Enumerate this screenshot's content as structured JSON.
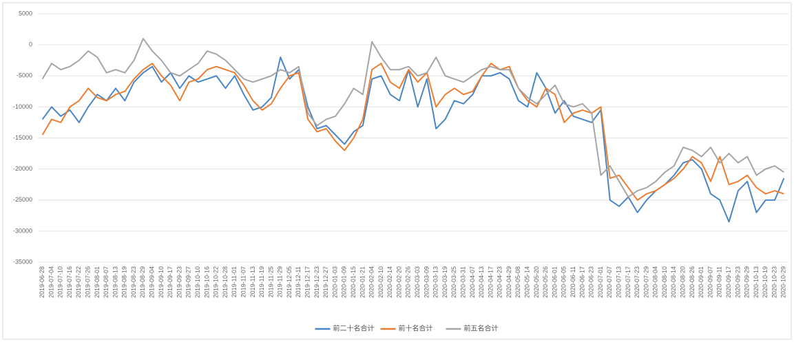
{
  "chart_data": {
    "type": "line",
    "categories": [
      "2019-06-28",
      "2019-07-04",
      "2019-07-10",
      "2019-07-16",
      "2019-07-22",
      "2019-07-26",
      "2019-08-01",
      "2019-08-07",
      "2019-08-13",
      "2019-08-19",
      "2019-08-23",
      "2019-08-29",
      "2019-09-04",
      "2019-09-10",
      "2019-09-17",
      "2019-09-23",
      "2019-09-27",
      "2019-10-10",
      "2019-10-16",
      "2019-10-22",
      "2019-10-28",
      "2019-11-01",
      "2019-11-07",
      "2019-11-13",
      "2019-11-19",
      "2019-11-25",
      "2019-11-29",
      "2019-12-05",
      "2019-12-11",
      "2019-12-17",
      "2019-12-23",
      "2019-12-27",
      "2020-01-03",
      "2020-01-09",
      "2020-01-15",
      "2020-01-21",
      "2020-02-04",
      "2020-02-10",
      "2020-02-14",
      "2020-02-20",
      "2020-02-26",
      "2020-03-03",
      "2020-03-09",
      "2020-03-13",
      "2020-03-19",
      "2020-03-25",
      "2020-03-31",
      "2020-04-07",
      "2020-04-13",
      "2020-04-17",
      "2020-04-23",
      "2020-04-29",
      "2020-05-08",
      "2020-05-14",
      "2020-05-20",
      "2020-05-26",
      "2020-06-01",
      "2020-06-05",
      "2020-06-11",
      "2020-06-17",
      "2020-06-23",
      "2020-07-01",
      "2020-07-07",
      "2020-07-13",
      "2020-07-17",
      "2020-07-23",
      "2020-07-29",
      "2020-08-04",
      "2020-08-10",
      "2020-08-14",
      "2020-08-20",
      "2020-08-26",
      "2020-09-01",
      "2020-09-07",
      "2020-09-11",
      "2020-09-17",
      "2020-09-23",
      "2020-09-29",
      "2020-10-13",
      "2020-10-19",
      "2020-10-23",
      "2020-10-29"
    ],
    "series": [
      {
        "name": "前二十名合计",
        "color": "#4a86c5",
        "values": [
          -12000,
          -10000,
          -11500,
          -10500,
          -12500,
          -10000,
          -8000,
          -9000,
          -7000,
          -9000,
          -6000,
          -4500,
          -3500,
          -6000,
          -4500,
          -7000,
          -5000,
          -6000,
          -5500,
          -5000,
          -7000,
          -5000,
          -8000,
          -10500,
          -10000,
          -8500,
          -2000,
          -5500,
          -4000,
          -10000,
          -13500,
          -13000,
          -14500,
          -16000,
          -14000,
          -13000,
          -5500,
          -5000,
          -8000,
          -9000,
          -4000,
          -10000,
          -5500,
          -13500,
          -12000,
          -9000,
          -9500,
          -8000,
          -5000,
          -5000,
          -4500,
          -5500,
          -9000,
          -10000,
          -4500,
          -7000,
          -11000,
          -9000,
          -11500,
          -12000,
          -12500,
          -10500,
          -25000,
          -26000,
          -24500,
          -27000,
          -25000,
          -23500,
          -22500,
          -21000,
          -19000,
          -18500,
          -20000,
          -24000,
          -25000,
          -28500,
          -23500,
          -22000,
          -27000,
          -25000,
          -25000,
          -21500
        ]
      },
      {
        "name": "前十名合计",
        "color": "#ed7d31",
        "values": [
          -14500,
          -12000,
          -12500,
          -10000,
          -9000,
          -7000,
          -8500,
          -9000,
          -8000,
          -7500,
          -5500,
          -4000,
          -3000,
          -5000,
          -6500,
          -9000,
          -6000,
          -5500,
          -4000,
          -3500,
          -4000,
          -4500,
          -6500,
          -9000,
          -10500,
          -9500,
          -7000,
          -5000,
          -4500,
          -12000,
          -14000,
          -13500,
          -15500,
          -17000,
          -15000,
          -12000,
          -4000,
          -3000,
          -6000,
          -7000,
          -4000,
          -6000,
          -4500,
          -10000,
          -8000,
          -7000,
          -8000,
          -7500,
          -5000,
          -3000,
          -4000,
          -3500,
          -7000,
          -9000,
          -10000,
          -7000,
          -8000,
          -12500,
          -11000,
          -10500,
          -11000,
          -10000,
          -21500,
          -21000,
          -23000,
          -25000,
          -24000,
          -23500,
          -22500,
          -21500,
          -20000,
          -18000,
          -19000,
          -22000,
          -18000,
          -22500,
          -22000,
          -21000,
          -23000,
          -24000,
          -23500,
          -24000
        ]
      },
      {
        "name": "前五名合计",
        "color": "#a5a5a5",
        "values": [
          -5500,
          -3000,
          -4000,
          -3500,
          -2500,
          -1000,
          -2000,
          -4500,
          -4000,
          -4500,
          -2500,
          1000,
          -1000,
          -2500,
          -4500,
          -5000,
          -4000,
          -3000,
          -1000,
          -1500,
          -2500,
          -4000,
          -5500,
          -6000,
          -5500,
          -5000,
          -4000,
          -4500,
          -3500,
          -11000,
          -13000,
          -12000,
          -11500,
          -9500,
          -7000,
          -8000,
          500,
          -2000,
          -4000,
          -4000,
          -3500,
          -5000,
          -4500,
          -2000,
          -5000,
          -5500,
          -6000,
          -5000,
          -4000,
          -3500,
          -4000,
          -4000,
          -7000,
          -8500,
          -9500,
          -8000,
          -6500,
          -9500,
          -10000,
          -9500,
          -11000,
          -21000,
          -19500,
          -22000,
          -24500,
          -23500,
          -23000,
          -22000,
          -20500,
          -19500,
          -16500,
          -17000,
          -18000,
          -16500,
          -19000,
          -17500,
          -19000,
          -18000,
          -21000,
          -20000,
          -19500,
          -20500
        ]
      }
    ],
    "ylim": [
      -35000,
      5000
    ],
    "yticks": [
      5000,
      0,
      -5000,
      -10000,
      -15000,
      -20000,
      -25000,
      -30000,
      -35000
    ],
    "grid": true,
    "legend": "bottom"
  }
}
